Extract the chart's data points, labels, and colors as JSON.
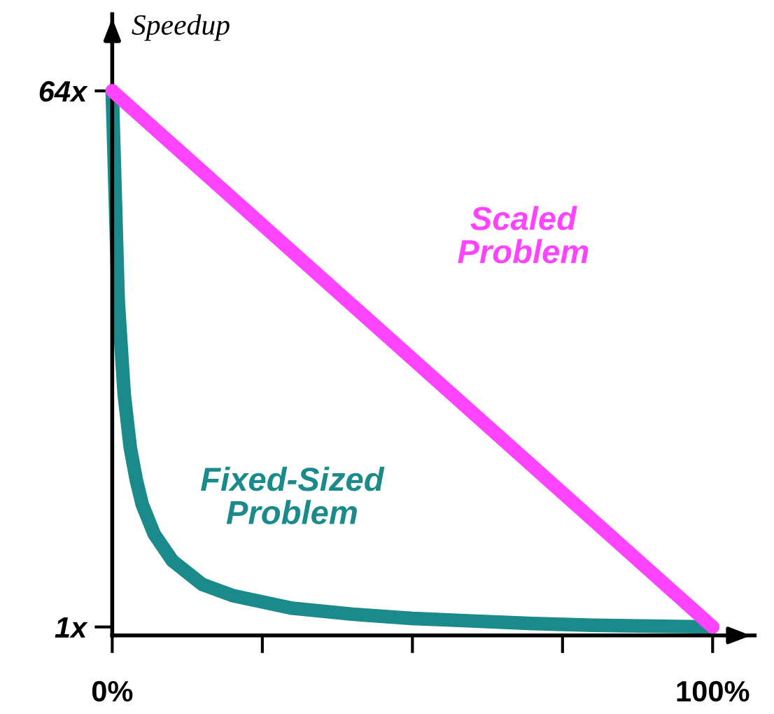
{
  "chart_data": {
    "type": "line",
    "ylabel": "Speedup",
    "x": [
      0,
      1,
      2,
      3,
      4,
      5,
      7,
      10,
      15,
      20,
      30,
      40,
      50,
      60,
      70,
      80,
      90,
      100
    ],
    "series": [
      {
        "name": "Scaled Problem",
        "color": "#ff44ff",
        "x": [
          0,
          100
        ],
        "values": [
          64,
          1
        ]
      },
      {
        "name": "Fixed-Sized Problem",
        "color": "#1a8a8a",
        "values": [
          64,
          39.3,
          28.3,
          22.1,
          18.3,
          15.4,
          11.9,
          8.8,
          6.0,
          4.7,
          3.2,
          2.5,
          2.0,
          1.7,
          1.4,
          1.2,
          1.1,
          1.0
        ]
      }
    ],
    "xlim": [
      0,
      107
    ],
    "ylim": [
      0,
      73
    ],
    "xticks": [
      {
        "value": 0,
        "label": "0%"
      },
      {
        "value": 25,
        "label": null
      },
      {
        "value": 50,
        "label": null
      },
      {
        "value": 75,
        "label": null
      },
      {
        "value": 100,
        "label": "100%"
      }
    ],
    "yticks": [
      {
        "value": 1,
        "label": "1x"
      },
      {
        "value": 64,
        "label": "64x"
      }
    ],
    "grid": false,
    "legend": false,
    "marker": "none",
    "line_style": "solid"
  }
}
